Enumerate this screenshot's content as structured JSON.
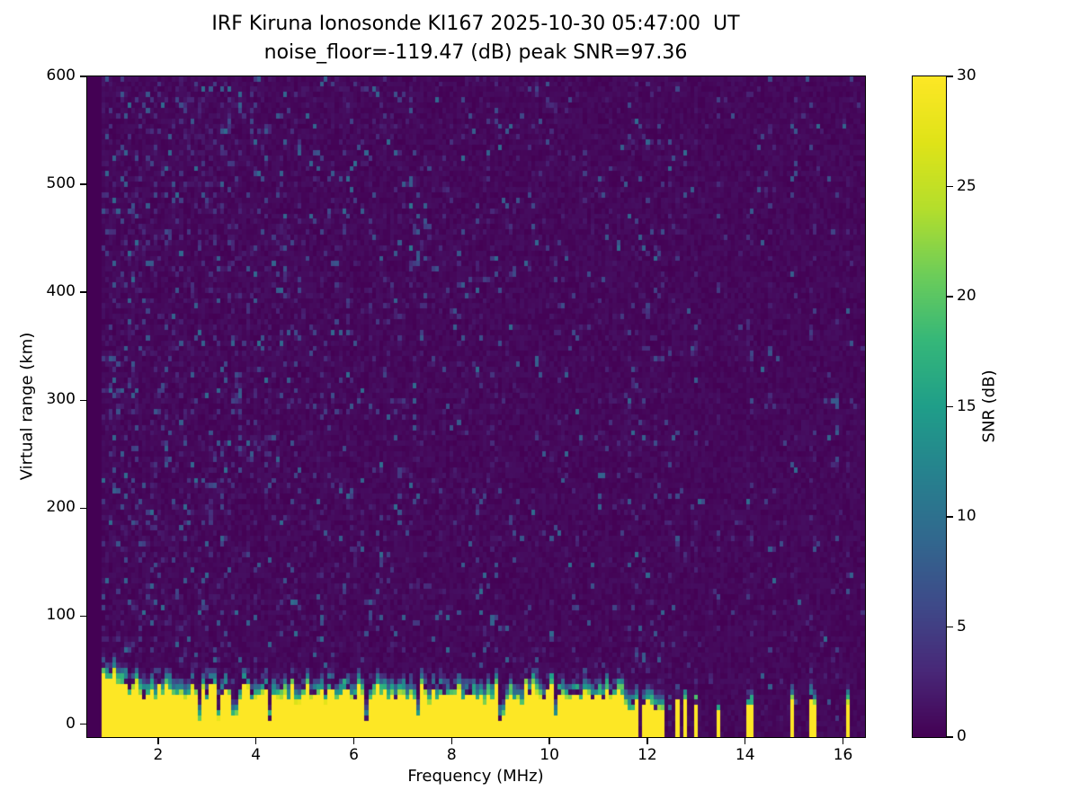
{
  "chart_data": {
    "type": "heatmap",
    "title": "IRF Kiruna Ionosonde KI167 2025-10-30 05:47:00  UT",
    "subtitle": "noise_floor=-119.47 (dB) peak SNR=97.36",
    "station": "KI167",
    "timestamp_ut": "2025-10-30 05:47:00",
    "noise_floor_db": -119.47,
    "peak_snr_db": 97.36,
    "xlabel": "Frequency (MHz)",
    "ylabel": "Virtual range (km)",
    "xlim": [
      0.55,
      16.45
    ],
    "ylim": [
      -12,
      600
    ],
    "x_ticks": [
      2,
      4,
      6,
      8,
      10,
      12,
      14,
      16
    ],
    "y_ticks": [
      0,
      100,
      200,
      300,
      400,
      500,
      600
    ],
    "colormap": "viridis",
    "colorbar": {
      "label": "SNR (dB)",
      "min": 0,
      "max": 30,
      "ticks": [
        0,
        5,
        10,
        15,
        20,
        25,
        30
      ]
    },
    "features": {
      "data_start_mhz": 0.88,
      "ground_band": {
        "freq_start": 0.88,
        "freq_end": 11.58,
        "top_km_mean": 27,
        "top_km_jitter": 9,
        "transition_km": 18,
        "notches": [
          2.88,
          3.22,
          3.58,
          4.32,
          6.28,
          7.33,
          9.02,
          10.12
        ]
      },
      "rf_stripes": [
        11.68,
        11.82,
        11.98,
        12.14,
        12.3,
        12.46,
        12.62,
        12.78,
        13.0,
        13.45,
        14.1,
        14.5,
        15.0,
        15.38,
        15.88,
        16.1
      ],
      "echo_patch": {
        "freq": 7.25,
        "range_km": 470,
        "spread_mhz": 0.12,
        "spread_km": 50
      }
    },
    "render": {
      "seed": 42,
      "ncols": 210,
      "nrows": 125
    }
  }
}
